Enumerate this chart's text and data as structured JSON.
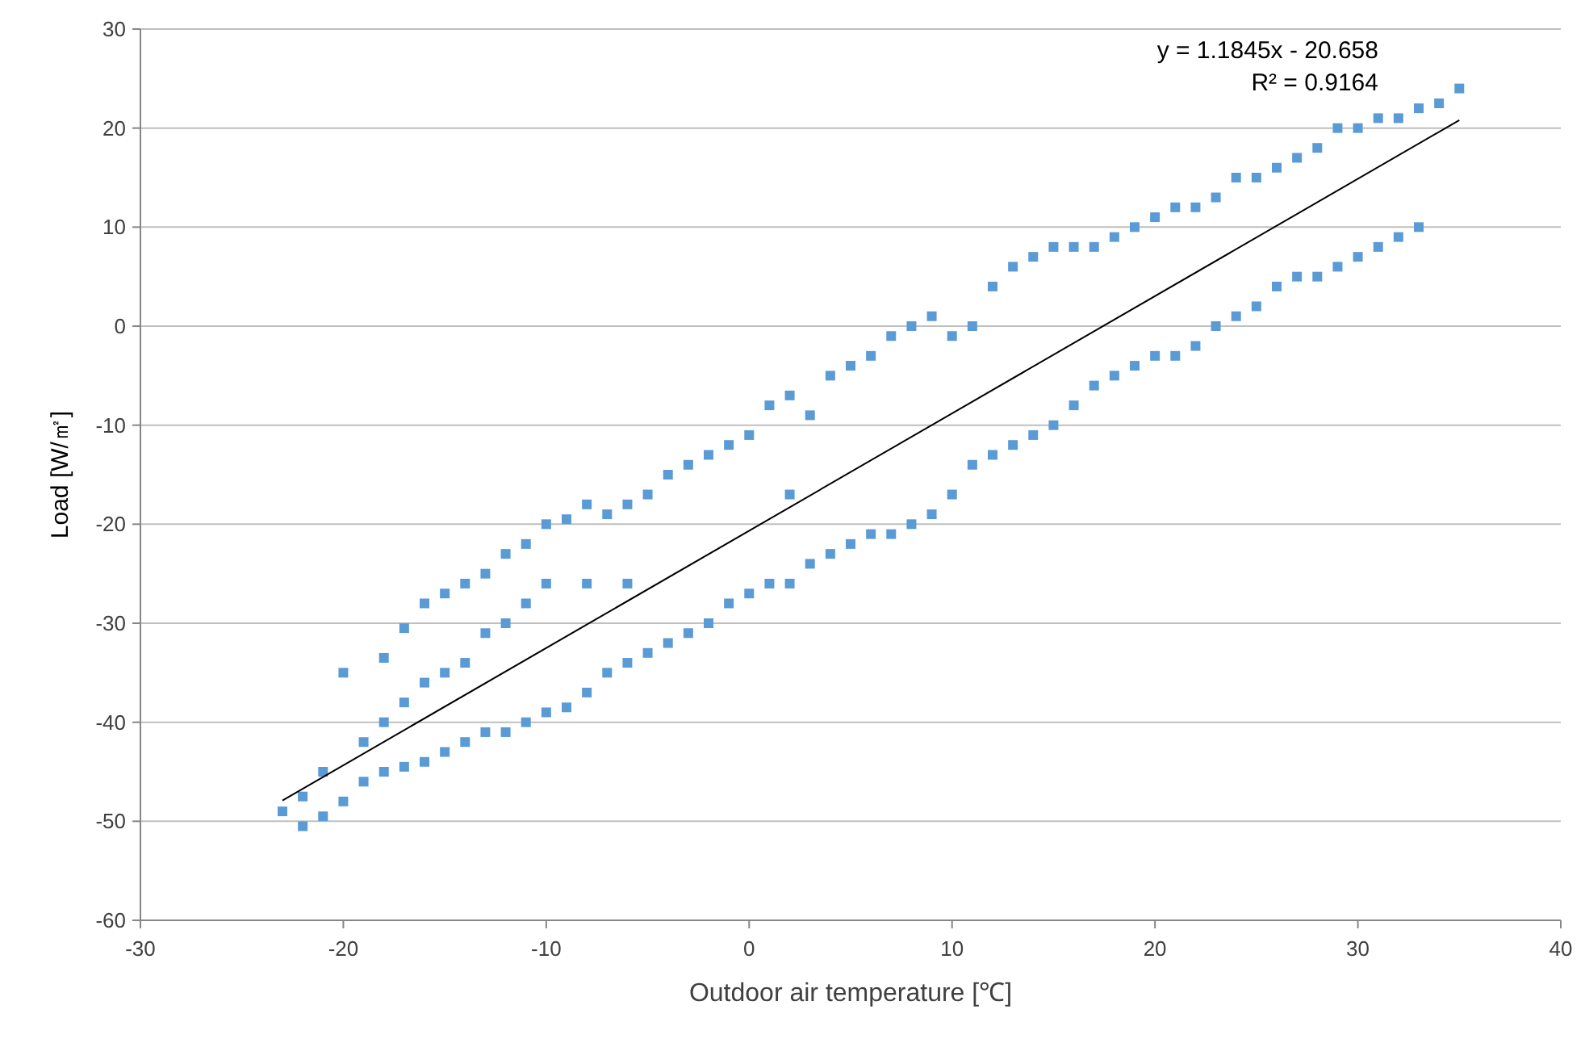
{
  "chart_data": {
    "type": "scatter",
    "xlabel": "Outdoor air temperature [℃]",
    "ylabel": "Load [W/㎡]",
    "xlim": [
      -30,
      40
    ],
    "xticks": [
      -30,
      -20,
      -10,
      0,
      10,
      20,
      30,
      40
    ],
    "ylim": [
      -60,
      30
    ],
    "yticks": [
      -60,
      -50,
      -40,
      -30,
      -20,
      -10,
      0,
      10,
      20,
      30
    ],
    "grid": "y",
    "marker": "square",
    "annotations": [
      "y = 1.1845x - 20.658",
      "R² = 0.9164"
    ],
    "series": [
      {
        "color": "#5b9bd5",
        "x": [
          -23,
          -22,
          -22,
          -21,
          -21,
          -20,
          -20,
          -19,
          -19,
          -18,
          -18,
          -18,
          -17,
          -17,
          -17,
          -16,
          -16,
          -16,
          -15,
          -15,
          -15,
          -14,
          -14,
          -14,
          -13,
          -13,
          -13,
          -12,
          -12,
          -12,
          -11,
          -11,
          -11,
          -10,
          -10,
          -10,
          -9,
          -9,
          -8,
          -8,
          -8,
          -7,
          -7,
          -6,
          -6,
          -6,
          -5,
          -5,
          -4,
          -4,
          -3,
          -3,
          -2,
          -2,
          -1,
          -1,
          0,
          0,
          1,
          1,
          2,
          2,
          2,
          3,
          3,
          4,
          4,
          5,
          5,
          6,
          6,
          7,
          7,
          8,
          8,
          9,
          9,
          10,
          10,
          11,
          11,
          12,
          12,
          13,
          13,
          14,
          14,
          15,
          15,
          16,
          16,
          17,
          17,
          18,
          18,
          19,
          19,
          20,
          20,
          21,
          21,
          22,
          22,
          23,
          23,
          24,
          24,
          25,
          25,
          26,
          26,
          27,
          27,
          28,
          28,
          29,
          29,
          30,
          30,
          31,
          31,
          32,
          32,
          33,
          33,
          34,
          35
        ],
        "values": [
          -49,
          -50.5,
          -47.5,
          -49.5,
          -45,
          -48,
          -35,
          -46,
          -42,
          -45,
          -33.5,
          -40,
          -44.5,
          -38,
          -30.5,
          -44,
          -36,
          -28,
          -43,
          -27,
          -35,
          -42,
          -26,
          -34,
          -41,
          -25,
          -31,
          -41,
          -23,
          -30,
          -40,
          -22,
          -28,
          -39,
          -20,
          -26,
          -38.5,
          -19.5,
          -37,
          -18,
          -26,
          -35,
          -19,
          -34,
          -18,
          -26,
          -33,
          -17,
          -32,
          -15,
          -31,
          -14,
          -30,
          -13,
          -28,
          -12,
          -27,
          -11,
          -26,
          -8,
          -26,
          -7,
          -17,
          -24,
          -9,
          -23,
          -5,
          -22,
          -4,
          -21,
          -3,
          -21,
          -1,
          -20,
          0,
          -19,
          1,
          -17,
          -1,
          -14,
          0,
          -13,
          4,
          -12,
          6,
          -11,
          7,
          -10,
          8,
          -8,
          8,
          -6,
          8,
          -5,
          9,
          -4,
          10,
          -3,
          11,
          -3,
          12,
          -2,
          12,
          0,
          13,
          1,
          15,
          2,
          15,
          4,
          16,
          5,
          17,
          5,
          18,
          6,
          20,
          7,
          20,
          8,
          21,
          9,
          21,
          10,
          22,
          22.5,
          24
        ]
      },
      {
        "type": "line",
        "color": "#000000",
        "x": [
          -23,
          35
        ],
        "values": [
          -47.9,
          20.8
        ],
        "marker": "none"
      }
    ]
  }
}
